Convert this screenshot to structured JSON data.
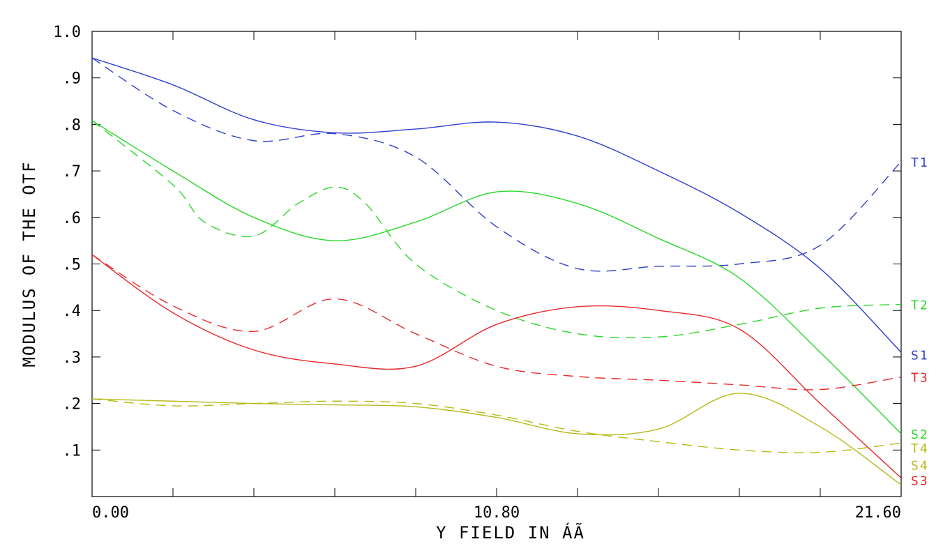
{
  "chart_data": {
    "type": "line",
    "xlabel": "Y FIELD IN   ÁÃ",
    "ylabel": "MODULUS OF THE OTF",
    "xlim": [
      0,
      21.6
    ],
    "ylim": [
      0.0,
      1.0
    ],
    "x_tick_labels": [
      "0.00",
      "10.80",
      "21.60"
    ],
    "x_tick_values": [
      0,
      10.8,
      21.6
    ],
    "x_minor_ticks": [
      2.16,
      4.32,
      6.48,
      8.64,
      12.96,
      15.12,
      17.28,
      19.44
    ],
    "y_tick_labels": [
      ".1",
      ".2",
      ".3",
      ".4",
      ".5",
      ".6",
      ".7",
      ".8",
      ".9",
      "1.0"
    ],
    "y_tick_values": [
      0.1,
      0.2,
      0.3,
      0.4,
      0.5,
      0.6,
      0.7,
      0.8,
      0.9,
      1.0
    ],
    "grid": false,
    "colors": {
      "1": "#2f3fcf",
      "2": "#29d829",
      "3": "#e8292a",
      "4": "#b8b81c"
    },
    "series": [
      {
        "name": "T1",
        "color_key": "1",
        "dash": false,
        "x": [
          0,
          2.16,
          4.32,
          6.48,
          8.64,
          10.8,
          12.96,
          15.12,
          17.28,
          19.44,
          21.6
        ],
        "y": [
          0.943,
          0.885,
          0.81,
          0.782,
          0.79,
          0.805,
          0.775,
          0.7,
          0.61,
          0.49,
          0.31
        ]
      },
      {
        "name": "S1",
        "color_key": "1",
        "dash": true,
        "x": [
          0,
          2.16,
          4.32,
          6.48,
          8.64,
          10.8,
          12.96,
          15.12,
          17.28,
          19.44,
          21.6
        ],
        "y": [
          0.943,
          0.83,
          0.765,
          0.78,
          0.73,
          0.58,
          0.49,
          0.495,
          0.5,
          0.54,
          0.72
        ]
      },
      {
        "name": "T2",
        "color_key": "2",
        "dash": false,
        "x": [
          0,
          2.16,
          4.32,
          6.48,
          8.64,
          10.8,
          12.96,
          15.12,
          17.28,
          19.44,
          21.6
        ],
        "y": [
          0.808,
          0.7,
          0.6,
          0.55,
          0.59,
          0.655,
          0.63,
          0.555,
          0.47,
          0.31,
          0.135
        ]
      },
      {
        "name": "S2",
        "color_key": "2",
        "dash": true,
        "x": [
          0,
          2.16,
          3.0,
          4.32,
          5.5,
          6.48,
          7.3,
          8.64,
          10.8,
          12.96,
          15.12,
          17.28,
          19.44,
          21.6
        ],
        "y": [
          0.808,
          0.67,
          0.59,
          0.56,
          0.63,
          0.665,
          0.63,
          0.5,
          0.4,
          0.35,
          0.343,
          0.37,
          0.405,
          0.413
        ]
      },
      {
        "name": "T3",
        "color_key": "3",
        "dash": false,
        "x": [
          0,
          2.16,
          4.32,
          6.48,
          8.64,
          10.8,
          12.96,
          15.12,
          17.28,
          19.44,
          21.6
        ],
        "y": [
          0.52,
          0.395,
          0.315,
          0.285,
          0.28,
          0.37,
          0.408,
          0.4,
          0.36,
          0.2,
          0.04
        ]
      },
      {
        "name": "S3",
        "color_key": "3",
        "dash": true,
        "x": [
          0,
          2.16,
          4.32,
          6.48,
          8.64,
          10.8,
          12.96,
          15.12,
          17.28,
          19.44,
          21.6
        ],
        "y": [
          0.52,
          0.41,
          0.355,
          0.425,
          0.35,
          0.28,
          0.258,
          0.25,
          0.24,
          0.23,
          0.257
        ]
      },
      {
        "name": "T4",
        "color_key": "4",
        "dash": false,
        "x": [
          0,
          2.16,
          4.32,
          6.48,
          8.64,
          10.8,
          12.96,
          15.12,
          17.28,
          19.44,
          21.6
        ],
        "y": [
          0.21,
          0.205,
          0.2,
          0.197,
          0.193,
          0.17,
          0.135,
          0.145,
          0.222,
          0.15,
          0.025
        ]
      },
      {
        "name": "S4",
        "color_key": "4",
        "dash": true,
        "x": [
          0,
          2.16,
          4.32,
          6.48,
          8.64,
          10.8,
          12.96,
          15.12,
          17.28,
          19.44,
          21.6
        ],
        "y": [
          0.21,
          0.195,
          0.2,
          0.205,
          0.2,
          0.175,
          0.14,
          0.118,
          0.1,
          0.095,
          0.115
        ]
      }
    ],
    "end_labels": [
      {
        "text": "T1",
        "color_key": "1",
        "y": 0.72
      },
      {
        "text": "T2",
        "color_key": "2",
        "y": 0.413
      },
      {
        "text": "S1",
        "color_key": "1",
        "y": 0.305
      },
      {
        "text": "T3",
        "color_key": "3",
        "y": 0.257
      },
      {
        "text": "S2",
        "color_key": "2",
        "y": 0.135
      },
      {
        "text": "T4",
        "color_key": "4",
        "y": 0.105
      },
      {
        "text": "S4",
        "color_key": "4",
        "y": 0.068
      },
      {
        "text": "S3",
        "color_key": "3",
        "y": 0.035
      }
    ]
  }
}
